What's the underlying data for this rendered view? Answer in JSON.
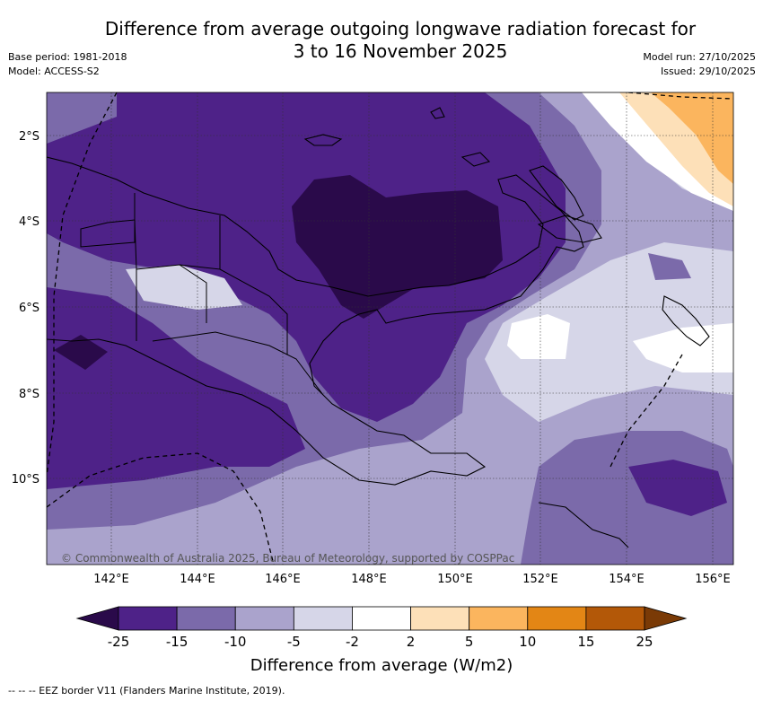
{
  "title": {
    "line1": "Difference from average outgoing longwave radiation forecast for",
    "line2": "3 to 16 November 2025"
  },
  "meta": {
    "base_period": "Base period: 1981-2018",
    "model": "Model: ACCESS-S2",
    "model_run": "Model run: 27/10/2025",
    "issued": "Issued: 29/10/2025"
  },
  "map": {
    "lat_labels": [
      "2°S",
      "4°S",
      "6°S",
      "8°S",
      "10°S"
    ],
    "lon_labels": [
      "142°E",
      "144°E",
      "146°E",
      "148°E",
      "150°E",
      "152°E",
      "154°E",
      "156°E"
    ],
    "copyright": "© Commonwealth of Australia 2025, Bureau of Meteorology, supported by COSPPac"
  },
  "legend": {
    "ticks": [
      "-25",
      "-15",
      "-10",
      "-5",
      "-2",
      "2",
      "5",
      "10",
      "15",
      "25"
    ],
    "label": "Difference from average (W/m2)",
    "colors": [
      "#2a0a4a",
      "#4e2288",
      "#7b6aaa",
      "#aaa3cc",
      "#d6d6e8",
      "#ffffff",
      "#fde0b8",
      "#fbb55e",
      "#e38615",
      "#b35808",
      "#7a3a06"
    ]
  },
  "footer": {
    "eez_note": "-- -- -- EEZ border V11 (Flanders Marine Institute, 2019)."
  }
}
